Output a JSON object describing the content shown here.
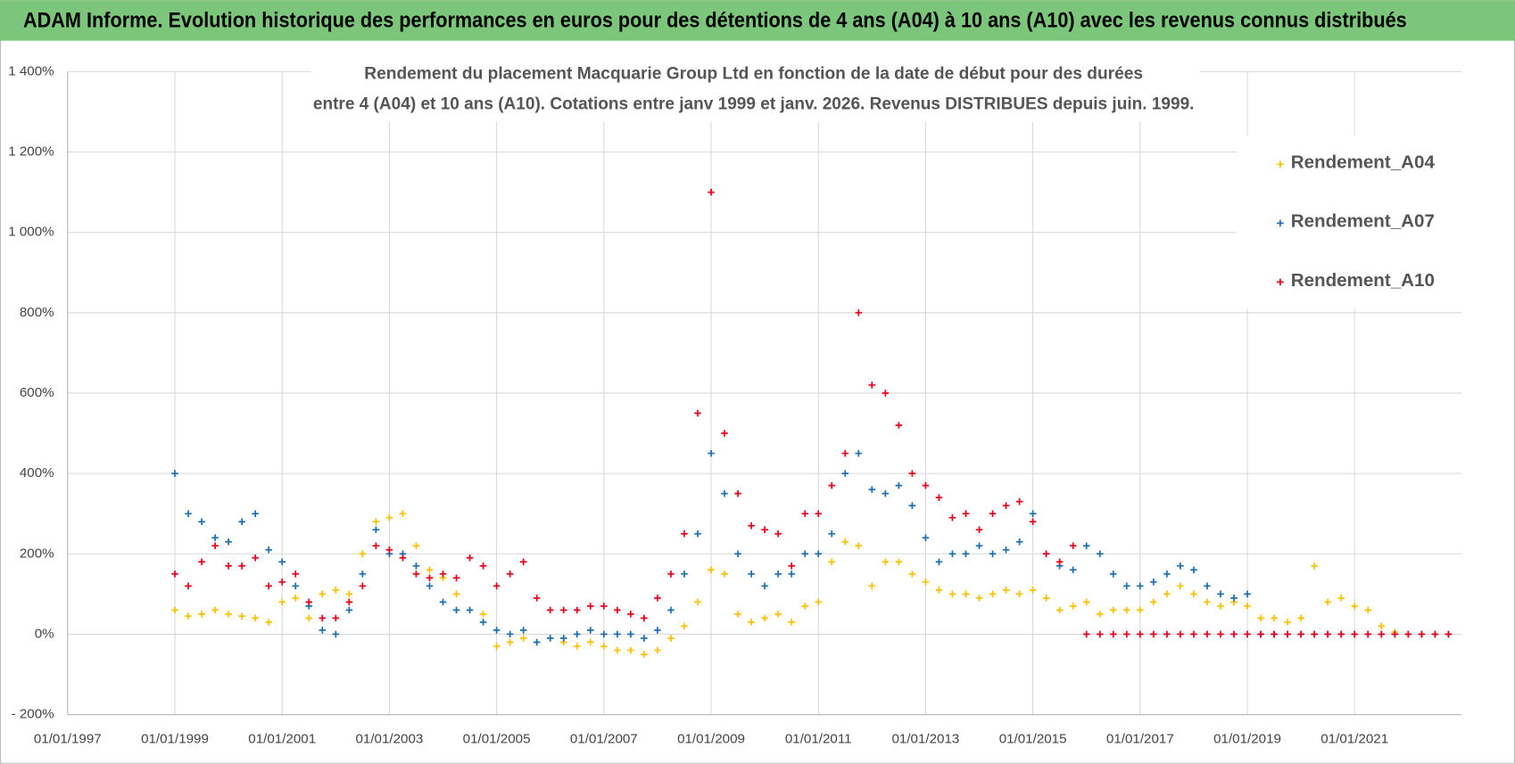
{
  "header": {
    "title": "ADAM Informe. Evolution historique des performances en euros pour des détentions de 4 ans (A04) à 10 ans (A10) avec les revenus connus distribués"
  },
  "chart_data": {
    "type": "scatter",
    "title_lines": [
      "Rendement du placement Macquarie Group Ltd en fonction de la date de début pour des durées",
      "entre 4 (A04) et 10 ans (A10).  Cotations entre janv 1999 et janv. 2026. Revenus DISTRIBUES depuis juin. 1999."
    ],
    "x": [
      "01/01/1999",
      "01/04/1999",
      "01/07/1999",
      "01/10/1999",
      "01/01/2000",
      "01/04/2000",
      "01/07/2000",
      "01/10/2000",
      "01/01/2001",
      "01/04/2001",
      "01/07/2001",
      "01/10/2001",
      "01/01/2002",
      "01/04/2002",
      "01/07/2002",
      "01/10/2002",
      "01/01/2003",
      "01/04/2003",
      "01/07/2003",
      "01/10/2003",
      "01/01/2004",
      "01/04/2004",
      "01/07/2004",
      "01/10/2004",
      "01/01/2005",
      "01/04/2005",
      "01/07/2005",
      "01/10/2005",
      "01/01/2006",
      "01/04/2006",
      "01/07/2006",
      "01/10/2006",
      "01/01/2007",
      "01/04/2007",
      "01/07/2007",
      "01/10/2007",
      "01/01/2008",
      "01/04/2008",
      "01/07/2008",
      "01/10/2008",
      "01/01/2009",
      "01/04/2009",
      "01/07/2009",
      "01/10/2009",
      "01/01/2010",
      "01/04/2010",
      "01/07/2010",
      "01/10/2010",
      "01/01/2011",
      "01/04/2011",
      "01/07/2011",
      "01/10/2011",
      "01/01/2012",
      "01/04/2012",
      "01/07/2012",
      "01/10/2012",
      "01/01/2013",
      "01/04/2013",
      "01/07/2013",
      "01/10/2013",
      "01/01/2014",
      "01/04/2014",
      "01/07/2014",
      "01/10/2014",
      "01/01/2015",
      "01/04/2015",
      "01/07/2015",
      "01/10/2015",
      "01/01/2016",
      "01/04/2016",
      "01/07/2016",
      "01/10/2016",
      "01/01/2017",
      "01/04/2017",
      "01/07/2017",
      "01/10/2017",
      "01/01/2018",
      "01/04/2018",
      "01/07/2018",
      "01/10/2018",
      "01/01/2019",
      "01/04/2019",
      "01/07/2019",
      "01/10/2019",
      "01/01/2020",
      "01/04/2020",
      "01/07/2020",
      "01/10/2020",
      "01/01/2021",
      "01/04/2021",
      "01/07/2021",
      "01/10/2021",
      "01/01/2022",
      "01/04/2022",
      "01/07/2022",
      "01/10/2022"
    ],
    "series": [
      {
        "name": "Rendement_A04",
        "color": "#ffc000",
        "values": [
          60,
          45,
          50,
          60,
          50,
          45,
          40,
          30,
          80,
          90,
          40,
          100,
          110,
          100,
          200,
          280,
          290,
          300,
          220,
          160,
          140,
          100,
          60,
          50,
          -30,
          -20,
          -10,
          -20,
          -10,
          -20,
          -30,
          -20,
          -30,
          -40,
          -40,
          -50,
          -40,
          -10,
          20,
          80,
          160,
          150,
          50,
          30,
          40,
          50,
          30,
          70,
          80,
          180,
          230,
          220,
          120,
          180,
          180,
          150,
          130,
          110,
          100,
          100,
          90,
          100,
          110,
          100,
          110,
          90,
          60,
          70,
          80,
          50,
          60,
          60,
          60,
          80,
          100,
          120,
          100,
          80,
          70,
          80,
          70,
          40,
          40,
          30,
          40,
          170,
          80,
          90,
          70,
          60,
          20,
          5,
          null,
          null,
          null,
          null
        ]
      },
      {
        "name": "Rendement_A07",
        "color": "#1f6fb4",
        "values": [
          400,
          300,
          280,
          240,
          230,
          280,
          300,
          210,
          180,
          120,
          70,
          10,
          0,
          60,
          150,
          260,
          200,
          200,
          170,
          120,
          80,
          60,
          60,
          30,
          10,
          0,
          10,
          -20,
          -10,
          -10,
          0,
          10,
          0,
          0,
          0,
          -10,
          10,
          60,
          150,
          250,
          450,
          350,
          200,
          150,
          120,
          150,
          150,
          200,
          200,
          250,
          400,
          450,
          360,
          350,
          370,
          320,
          240,
          180,
          200,
          200,
          220,
          200,
          210,
          230,
          300,
          200,
          170,
          160,
          220,
          200,
          150,
          120,
          120,
          130,
          150,
          170,
          160,
          120,
          100,
          90,
          100,
          0,
          0,
          0,
          0,
          0,
          0,
          0,
          0,
          0,
          0,
          0,
          0,
          0,
          0,
          0
        ]
      },
      {
        "name": "Rendement_A10",
        "color": "#e8001c",
        "values": [
          150,
          120,
          180,
          220,
          170,
          170,
          190,
          120,
          130,
          150,
          80,
          40,
          40,
          80,
          120,
          220,
          210,
          190,
          150,
          140,
          150,
          140,
          190,
          170,
          120,
          150,
          180,
          90,
          60,
          60,
          60,
          70,
          70,
          60,
          50,
          40,
          90,
          150,
          250,
          550,
          1100,
          500,
          350,
          270,
          260,
          250,
          170,
          300,
          300,
          370,
          450,
          800,
          620,
          600,
          520,
          400,
          370,
          340,
          290,
          300,
          260,
          300,
          320,
          330,
          280,
          200,
          180,
          220,
          0,
          0,
          0,
          0,
          0,
          0,
          0,
          0,
          0,
          0,
          0,
          0,
          0,
          0,
          0,
          0,
          0,
          0,
          0,
          0,
          0,
          0,
          0,
          0,
          0,
          0,
          0,
          0
        ]
      }
    ],
    "xlim": [
      "01/01/1997",
      "01/01/2023"
    ],
    "xticks": [
      "01/01/1997",
      "01/01/1999",
      "01/01/2001",
      "01/01/2003",
      "01/01/2005",
      "01/01/2007",
      "01/01/2009",
      "01/01/2011",
      "01/01/2013",
      "01/01/2015",
      "01/01/2017",
      "01/01/2019",
      "01/01/2021"
    ],
    "ylim": [
      -200,
      1400
    ],
    "yticks": [
      {
        "value": -200,
        "label": "- 200%"
      },
      {
        "value": 0,
        "label": "0%"
      },
      {
        "value": 200,
        "label": "200%"
      },
      {
        "value": 400,
        "label": "400%"
      },
      {
        "value": 600,
        "label": "600%"
      },
      {
        "value": 800,
        "label": "800%"
      },
      {
        "value": 1000,
        "label": "1 000%"
      },
      {
        "value": 1200,
        "label": "1 200%"
      },
      {
        "value": 1400,
        "label": "1 400%"
      }
    ],
    "grid": true,
    "legend": "top-right"
  }
}
